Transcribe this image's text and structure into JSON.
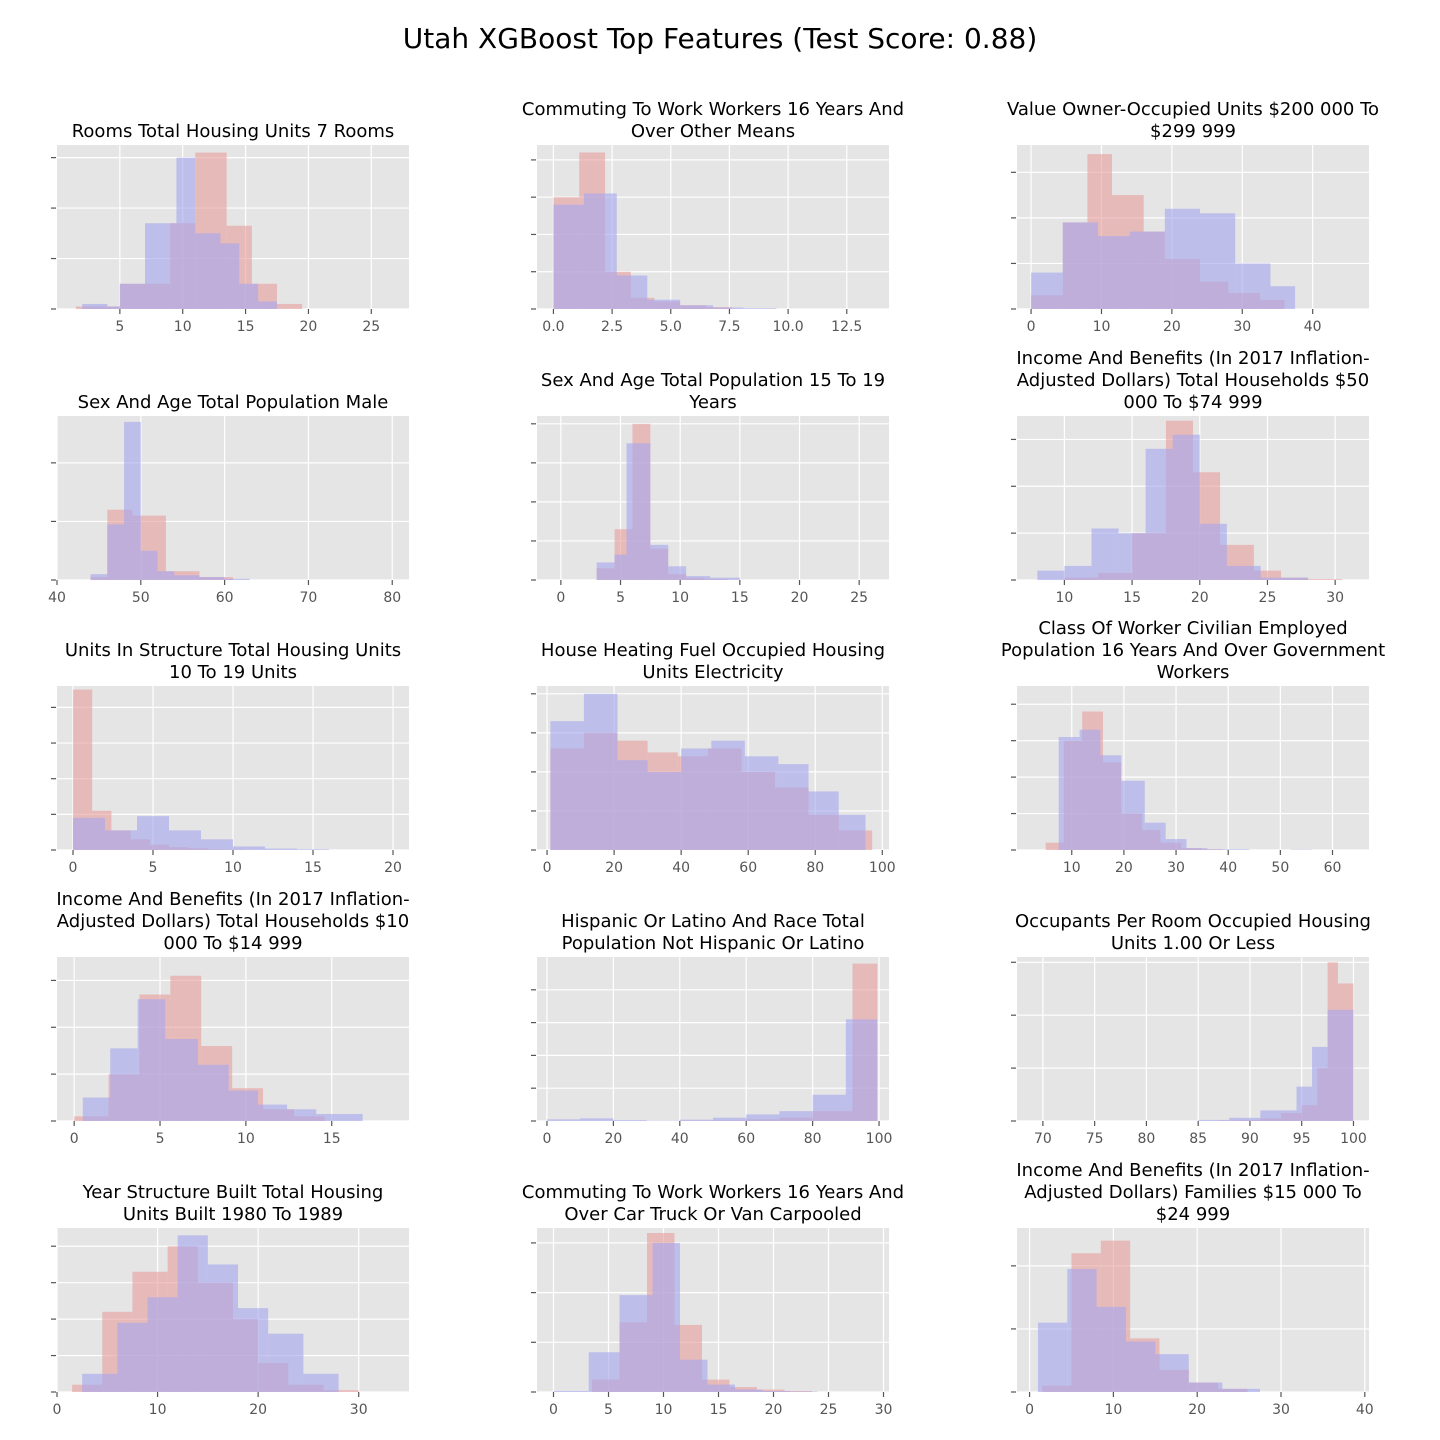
{
  "suptitle": "Utah XGBoost Top Features (Test Score: 0.88)",
  "colors": {
    "panel_bg": "#e5e5e5",
    "grid": "#ffffff",
    "tick": "#555555",
    "red_series": "#e8a0a0",
    "blue_series": "#a7a7ee",
    "overlap": "#a07bbf"
  },
  "chart_data": [
    {
      "type": "histogram",
      "title": [
        "Rooms Total Housing Units 7 Rooms"
      ],
      "xlim": [
        0,
        28
      ],
      "ylim": [
        0,
        6.5
      ],
      "xticks": [
        5,
        10,
        15,
        20,
        25
      ],
      "yticks": [
        0,
        2,
        4,
        6
      ],
      "series": [
        {
          "edges": [
            1.5,
            3.5,
            5,
            7,
            9,
            11,
            13.5,
            15.5,
            17.5,
            19.5,
            22
          ],
          "values": [
            0.1,
            0.1,
            1.0,
            1.0,
            3.4,
            6.2,
            3.3,
            1.0,
            0.2,
            0.0
          ]
        },
        {
          "edges": [
            2,
            4,
            5,
            7,
            9.5,
            11,
            13,
            14.5,
            16,
            17.5,
            19.5
          ],
          "values": [
            0.2,
            0.1,
            1.0,
            3.4,
            6.0,
            3.0,
            2.6,
            1.0,
            0.3,
            0.0
          ]
        }
      ]
    },
    {
      "type": "histogram",
      "title": [
        "Commuting To Work Workers 16 Years And",
        "Over Other Means"
      ],
      "xlim": [
        -0.7,
        14.3
      ],
      "ylim": [
        0,
        4.4
      ],
      "xticks": [
        0.0,
        2.5,
        5.0,
        7.5,
        10.0,
        12.5
      ],
      "xtick_labels": [
        "0.0",
        "2.5",
        "5.0",
        "7.5",
        "10.0",
        "12.5"
      ],
      "yticks": [
        0,
        1,
        2,
        3,
        4
      ],
      "series": [
        {
          "edges": [
            0,
            1.1,
            2.2,
            3.3,
            4.3,
            5.4,
            6.5,
            7.6,
            8.7,
            9.8
          ],
          "values": [
            3.0,
            4.2,
            1.0,
            0.3,
            0.2,
            0.1,
            0.05,
            0.0,
            0.0
          ]
        },
        {
          "edges": [
            0,
            1.3,
            2.7,
            4.0,
            5.4,
            6.8,
            8.1,
            9.5
          ],
          "values": [
            2.8,
            3.1,
            0.9,
            0.25,
            0.1,
            0.04,
            0.02
          ]
        }
      ]
    },
    {
      "type": "histogram",
      "title": [
        "Value Owner-Occupied Units $200 000 To",
        "$299 999"
      ],
      "xlim": [
        -2,
        48
      ],
      "ylim": [
        0,
        3.6
      ],
      "xticks": [
        0,
        10,
        20,
        30,
        40
      ],
      "yticks": [
        0,
        1,
        2,
        3
      ],
      "series": [
        {
          "edges": [
            0,
            4.5,
            8,
            11.5,
            16,
            19,
            24,
            28,
            32.5,
            36,
            40
          ],
          "values": [
            0.3,
            1.9,
            3.4,
            2.5,
            1.7,
            1.1,
            0.6,
            0.35,
            0.2,
            0.0
          ]
        },
        {
          "edges": [
            0,
            4.5,
            9.5,
            14,
            19,
            24,
            29,
            34,
            37.5
          ],
          "values": [
            0.8,
            1.9,
            1.6,
            1.7,
            2.2,
            2.1,
            1.0,
            0.5
          ]
        }
      ]
    },
    {
      "type": "histogram",
      "title": [
        "Sex And Age Total Population Male"
      ],
      "xlim": [
        40,
        82
      ],
      "ylim": [
        0,
        2.8
      ],
      "xticks": [
        40,
        50,
        60,
        70,
        80
      ],
      "yticks": [
        0,
        1,
        2
      ],
      "series": [
        {
          "edges": [
            44,
            46,
            49,
            53,
            57,
            61
          ],
          "values": [
            0.05,
            1.2,
            1.1,
            0.15,
            0.05
          ]
        },
        {
          "edges": [
            44,
            46,
            48,
            50,
            52,
            54,
            57,
            60,
            63
          ],
          "values": [
            0.1,
            0.95,
            2.7,
            0.5,
            0.15,
            0.08,
            0.05,
            0.02
          ]
        }
      ]
    },
    {
      "type": "histogram",
      "title": [
        "Sex And Age Total Population 15 To 19",
        "Years"
      ],
      "xlim": [
        -2,
        27.5
      ],
      "ylim": [
        0,
        4.2
      ],
      "xticks": [
        0,
        5,
        10,
        15,
        20,
        25
      ],
      "yticks": [
        0,
        1,
        2,
        3,
        4
      ],
      "series": [
        {
          "edges": [
            3,
            4.5,
            6,
            7.5,
            9,
            10.5,
            12,
            14
          ],
          "values": [
            0.3,
            1.3,
            4.0,
            0.8,
            0.15,
            0.05,
            0.02
          ]
        },
        {
          "edges": [
            3,
            4.5,
            5.5,
            7.5,
            9,
            10.5,
            12.5,
            15
          ],
          "values": [
            0.45,
            0.65,
            3.5,
            0.9,
            0.35,
            0.1,
            0.06
          ]
        }
      ]
    },
    {
      "type": "histogram",
      "title": [
        "Income And Benefits (In 2017 Inflation-",
        "Adjusted Dollars) Total Households $50",
        "000 To $74 999"
      ],
      "xlim": [
        6.5,
        32.5
      ],
      "ylim": [
        0,
        3.5
      ],
      "xticks": [
        10,
        15,
        20,
        25,
        30
      ],
      "yticks": [
        0,
        1,
        2,
        3
      ],
      "series": [
        {
          "edges": [
            10,
            12.5,
            15,
            17.5,
            19.5,
            21.5,
            24,
            26,
            28,
            30.5
          ],
          "values": [
            0.05,
            0.15,
            1.0,
            3.4,
            2.3,
            0.75,
            0.2,
            0.05,
            0.02
          ]
        },
        {
          "edges": [
            8,
            10,
            12,
            14,
            16,
            18,
            20,
            22,
            24.5,
            28
          ],
          "values": [
            0.2,
            0.3,
            1.1,
            1.0,
            2.8,
            3.1,
            1.2,
            0.3,
            0.05
          ]
        }
      ]
    },
    {
      "type": "histogram",
      "title": [
        "Units In Structure Total Housing Units",
        "10 To 19 Units"
      ],
      "xlim": [
        -1,
        21
      ],
      "ylim": [
        0,
        4.6
      ],
      "xticks": [
        0,
        5,
        10,
        15,
        20
      ],
      "yticks": [
        0,
        1,
        2,
        3,
        4
      ],
      "series": [
        {
          "edges": [
            0,
            1.2,
            2.4,
            3.6,
            4.8,
            6,
            7.2,
            8.4,
            9.6,
            10.8
          ],
          "values": [
            4.5,
            1.1,
            0.55,
            0.3,
            0.15,
            0.08,
            0.05,
            0.02,
            0.01
          ]
        },
        {
          "edges": [
            0,
            2,
            4,
            6,
            8,
            10,
            12,
            14,
            16
          ],
          "values": [
            0.9,
            0.55,
            0.95,
            0.55,
            0.3,
            0.1,
            0.04,
            0.02
          ]
        }
      ]
    },
    {
      "type": "histogram",
      "title": [
        "House Heating Fuel Occupied Housing",
        "Units Electricity"
      ],
      "xlim": [
        -3,
        102
      ],
      "ylim": [
        0,
        4.2
      ],
      "xticks": [
        0,
        20,
        40,
        60,
        80,
        100
      ],
      "yticks": [
        0,
        1,
        2,
        3,
        4
      ],
      "series": [
        {
          "edges": [
            1,
            11,
            21,
            30,
            39,
            48,
            58,
            68,
            78,
            87,
            97
          ],
          "values": [
            2.6,
            3.0,
            2.8,
            2.5,
            2.4,
            2.6,
            2.0,
            1.6,
            0.9,
            0.5
          ]
        },
        {
          "edges": [
            1,
            11,
            21,
            30,
            40,
            49,
            59,
            69,
            78,
            87,
            95
          ],
          "values": [
            3.3,
            4.0,
            2.3,
            2.0,
            2.6,
            2.8,
            2.4,
            2.2,
            1.5,
            0.9
          ]
        }
      ]
    },
    {
      "type": "histogram",
      "title": [
        "Class Of Worker Civilian Employed",
        "Population 16 Years And Over Government",
        "Workers"
      ],
      "xlim": [
        -0.5,
        67
      ],
      "ylim": [
        0,
        4.5
      ],
      "xticks": [
        10,
        20,
        30,
        40,
        50,
        60
      ],
      "yticks": [
        0,
        1,
        2,
        3,
        4
      ],
      "series": [
        {
          "edges": [
            5,
            8.5,
            12,
            16,
            19.5,
            23.5,
            27,
            31,
            35,
            39
          ],
          "values": [
            0.2,
            3.0,
            3.8,
            2.4,
            1.0,
            0.55,
            0.2,
            0.05,
            0.02
          ]
        },
        {
          "edges": [
            7.5,
            11.5,
            15.5,
            19.5,
            24,
            28,
            32,
            36,
            40,
            44,
            48,
            52,
            56,
            60
          ],
          "values": [
            3.1,
            3.3,
            2.6,
            1.9,
            0.75,
            0.3,
            0.05,
            0.02,
            0.02,
            0.0,
            0.0,
            0.01,
            0.0
          ]
        }
      ]
    },
    {
      "type": "histogram",
      "title": [
        "Income And Benefits (In 2017 Inflation-",
        "Adjusted Dollars) Total Households $10",
        "000 To $14 999"
      ],
      "xlim": [
        -1,
        19.5
      ],
      "ylim": [
        0,
        3.5
      ],
      "xticks": [
        0,
        5,
        10,
        15
      ],
      "yticks": [
        0,
        1,
        2,
        3
      ],
      "series": [
        {
          "edges": [
            0,
            2,
            3.8,
            5.6,
            7.4,
            9.2,
            11,
            12.8,
            14.6
          ],
          "values": [
            0.1,
            1.0,
            2.7,
            3.1,
            1.6,
            0.7,
            0.25,
            0.1
          ]
        },
        {
          "edges": [
            0.5,
            2.1,
            3.7,
            5.3,
            7.2,
            9.0,
            10.7,
            12.4,
            14.1,
            16.8
          ],
          "values": [
            0.5,
            1.55,
            2.6,
            1.75,
            1.2,
            0.65,
            0.35,
            0.25,
            0.15
          ]
        }
      ]
    },
    {
      "type": "histogram",
      "title": [
        "Hispanic Or Latino And Race Total",
        "Population Not Hispanic Or Latino"
      ],
      "xlim": [
        -3,
        103
      ],
      "ylim": [
        0,
        5
      ],
      "xticks": [
        0,
        20,
        40,
        60,
        80,
        100
      ],
      "yticks": [
        0,
        1,
        2,
        3,
        4
      ],
      "series": [
        {
          "edges": [
            40,
            50,
            60,
            70,
            80,
            92,
            99.5
          ],
          "values": [
            0.01,
            0.02,
            0.05,
            0.1,
            0.3,
            4.8
          ]
        },
        {
          "edges": [
            0,
            10,
            20,
            30,
            40,
            50,
            60,
            70,
            80,
            90,
            99.5
          ],
          "values": [
            0.05,
            0.08,
            0.03,
            0.01,
            0.04,
            0.1,
            0.2,
            0.3,
            0.8,
            3.1
          ]
        }
      ]
    },
    {
      "type": "histogram",
      "title": [
        "Occupants Per Room Occupied Housing",
        "Units 1.00 Or Less"
      ],
      "xlim": [
        67.5,
        101.5
      ],
      "ylim": [
        0,
        3.1
      ],
      "xticks": [
        70,
        75,
        80,
        85,
        90,
        95,
        100
      ],
      "yticks": [
        0,
        1,
        2,
        3
      ],
      "series": [
        {
          "edges": [
            87,
            89,
            91,
            93,
            95,
            96.5,
            97.5,
            98.5,
            100
          ],
          "values": [
            0.01,
            0.02,
            0.05,
            0.15,
            0.3,
            1.0,
            3.0,
            2.6
          ]
        },
        {
          "edges": [
            85,
            88,
            91,
            94.5,
            96,
            97.5,
            100
          ],
          "values": [
            0.02,
            0.06,
            0.2,
            0.65,
            1.4,
            2.1
          ]
        }
      ]
    },
    {
      "type": "histogram",
      "title": [
        "Year Structure Built Total Housing",
        "Units Built 1980 To 1989"
      ],
      "xlim": [
        0,
        35
      ],
      "ylim": [
        0,
        4.5
      ],
      "xticks": [
        0,
        10,
        20,
        30
      ],
      "yticks": [
        0,
        1,
        2,
        3,
        4
      ],
      "series": [
        {
          "edges": [
            1.5,
            4.5,
            7.5,
            11,
            14,
            17.5,
            20,
            23,
            26.5,
            30
          ],
          "values": [
            0.2,
            2.2,
            3.3,
            4.0,
            3.0,
            2.0,
            0.8,
            0.2,
            0.05
          ]
        },
        {
          "edges": [
            2.5,
            6,
            9,
            12,
            15,
            18,
            21,
            24.5,
            28
          ],
          "values": [
            0.5,
            1.9,
            2.6,
            4.3,
            3.5,
            2.3,
            1.6,
            0.5,
            0.15
          ]
        }
      ]
    },
    {
      "type": "histogram",
      "title": [
        "Commuting To Work Workers 16 Years And",
        "Over Car Truck Or Van Carpooled"
      ],
      "xlim": [
        -1.5,
        30.5
      ],
      "ylim": [
        0,
        3.3
      ],
      "xticks": [
        0,
        5,
        10,
        15,
        20,
        25,
        30
      ],
      "yticks": [
        0,
        1,
        2,
        3
      ],
      "series": [
        {
          "edges": [
            3.5,
            6,
            8.5,
            11,
            13.5,
            16,
            18.5,
            21,
            23.5
          ],
          "values": [
            0.25,
            1.4,
            3.2,
            1.35,
            0.25,
            0.1,
            0.05,
            0.02
          ]
        },
        {
          "edges": [
            0,
            3.2,
            6,
            9,
            11.5,
            14,
            16.5,
            19,
            21.5,
            24
          ],
          "values": [
            0.02,
            0.8,
            1.95,
            3.0,
            0.65,
            0.15,
            0.05,
            0.02,
            0.01
          ]
        }
      ]
    },
    {
      "type": "histogram",
      "title": [
        "Income And Benefits (In 2017 Inflation-",
        "Adjusted Dollars) Families $15 000 To",
        "$24 999"
      ],
      "xlim": [
        -1.5,
        40.5
      ],
      "ylim": [
        0,
        2.6
      ],
      "xticks": [
        0,
        10,
        20,
        30,
        40
      ],
      "yticks": [
        0,
        1,
        2
      ],
      "series": [
        {
          "edges": [
            1.5,
            5,
            8.5,
            12,
            15.5,
            19,
            22.5,
            26
          ],
          "values": [
            0.1,
            2.2,
            2.4,
            0.85,
            0.35,
            0.15,
            0.05
          ]
        },
        {
          "edges": [
            1.0,
            4.5,
            8,
            11.5,
            15,
            19,
            23,
            27.5
          ],
          "values": [
            1.1,
            1.95,
            1.35,
            0.8,
            0.6,
            0.15,
            0.05
          ]
        }
      ]
    }
  ]
}
